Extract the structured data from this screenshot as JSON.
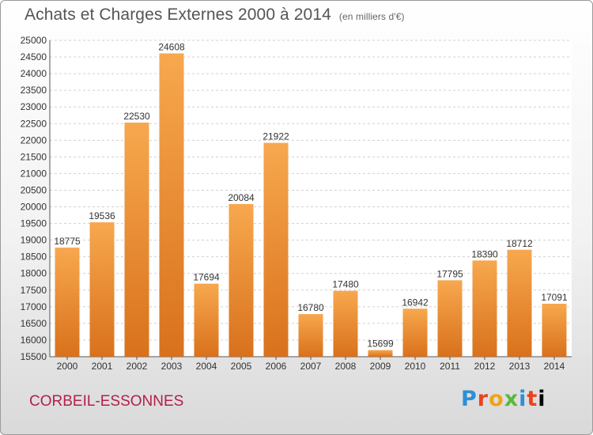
{
  "title": "Achats et Charges Externes 2000 à 2014",
  "subtitle": "(en milliers d'€)",
  "city": "CORBEIL-ESSONNES",
  "logo": [
    "P",
    "r",
    "o",
    "x",
    "i",
    "t",
    "i"
  ],
  "colors": {
    "bar_light": "#f7a84e",
    "bar_dark": "#d9711c",
    "grid": "#d0d0d0",
    "city": "#b2204a"
  },
  "chart_data": {
    "type": "bar",
    "title": "Achats et Charges Externes 2000 à 2014",
    "subtitle": "(en milliers d'€)",
    "categories": [
      "2000",
      "2001",
      "2002",
      "2003",
      "2004",
      "2005",
      "2006",
      "2007",
      "2008",
      "2009",
      "2010",
      "2011",
      "2012",
      "2013",
      "2014"
    ],
    "values": [
      18775,
      19536,
      22530,
      24608,
      17694,
      20084,
      21922,
      16780,
      17480,
      15699,
      16942,
      17795,
      18390,
      18712,
      17091
    ],
    "ylim": [
      15500,
      25000
    ],
    "yticks": [
      15500,
      16000,
      16500,
      17000,
      17500,
      18000,
      18500,
      19000,
      19500,
      20000,
      20500,
      21000,
      21500,
      22000,
      22500,
      23000,
      23500,
      24000,
      24500,
      25000
    ],
    "grid": true,
    "xlabel": "",
    "ylabel": ""
  }
}
